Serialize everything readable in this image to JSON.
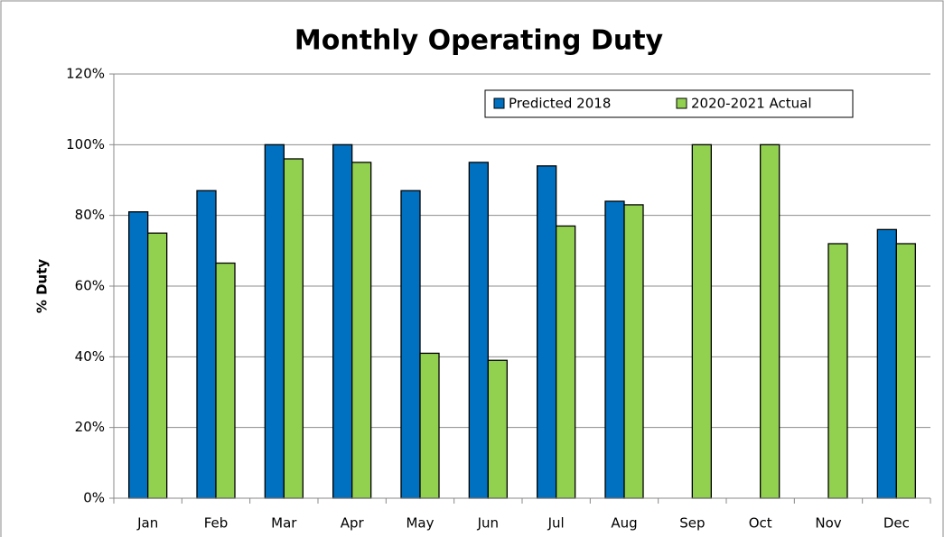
{
  "chart_data": {
    "type": "bar",
    "title": "Monthly Operating Duty",
    "y_label": "% Duty",
    "categories": [
      "Jan",
      "Feb",
      "Mar",
      "Apr",
      "May",
      "Jun",
      "Jul",
      "Aug",
      "Sep",
      "Oct",
      "Nov",
      "Dec"
    ],
    "series": [
      {
        "name": "Predicted 2018",
        "color": "#0070c0",
        "values": [
          81,
          87,
          100,
          100,
          87,
          95,
          94,
          84,
          null,
          null,
          null,
          76
        ]
      },
      {
        "name": "2020-2021 Actual",
        "color": "#92d050",
        "values": [
          75,
          66.5,
          96,
          95,
          41,
          39,
          77,
          83,
          100,
          100,
          72,
          72
        ]
      }
    ],
    "ylim": [
      0,
      120
    ],
    "yticks": [
      {
        "value": 0,
        "label": "0%"
      },
      {
        "value": 20,
        "label": "20%"
      },
      {
        "value": 40,
        "label": "40%"
      },
      {
        "value": 60,
        "label": "60%"
      },
      {
        "value": 80,
        "label": "80%"
      },
      {
        "value": 100,
        "label": "100%"
      },
      {
        "value": 120,
        "label": "120%"
      }
    ],
    "grid": true,
    "legend": "top"
  }
}
